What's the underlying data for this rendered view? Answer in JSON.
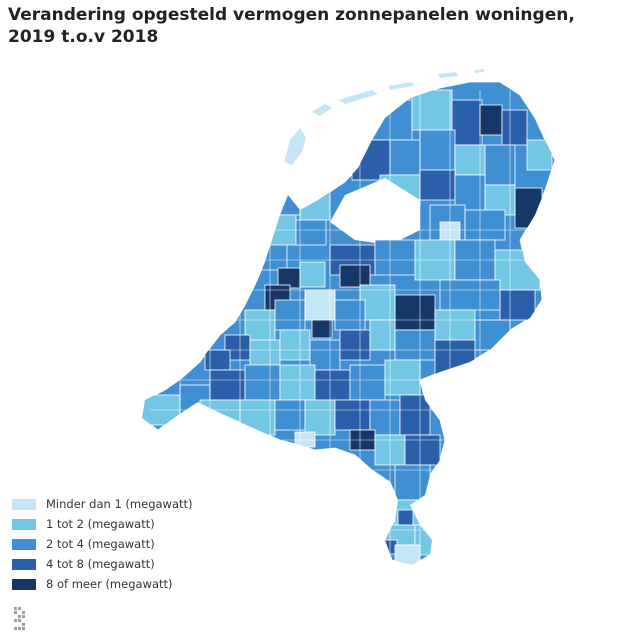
{
  "title": "Verandering opgesteld vermogen zonnepanelen woningen, 2019 t.o.v 2018",
  "colors": {
    "c1": "#c6e6f8",
    "c2": "#74c6e5",
    "c3": "#3f8fd2",
    "c4": "#2b5faa",
    "c5": "#163768",
    "water": "#c6e6f8"
  },
  "legend": [
    {
      "label": "Minder dan 1 (megawatt)",
      "color": "#c6e6f8"
    },
    {
      "label": "1 tot 2 (megawatt)",
      "color": "#74c6e5"
    },
    {
      "label": "2 tot 4 (megawatt)",
      "color": "#3f8fd2"
    },
    {
      "label": "4 tot 8 (megawatt)",
      "color": "#2b5faa"
    },
    {
      "label": "8 of meer (megawatt)",
      "color": "#163768"
    }
  ],
  "logo": {
    "icon": "cbs-logo-icon"
  }
}
